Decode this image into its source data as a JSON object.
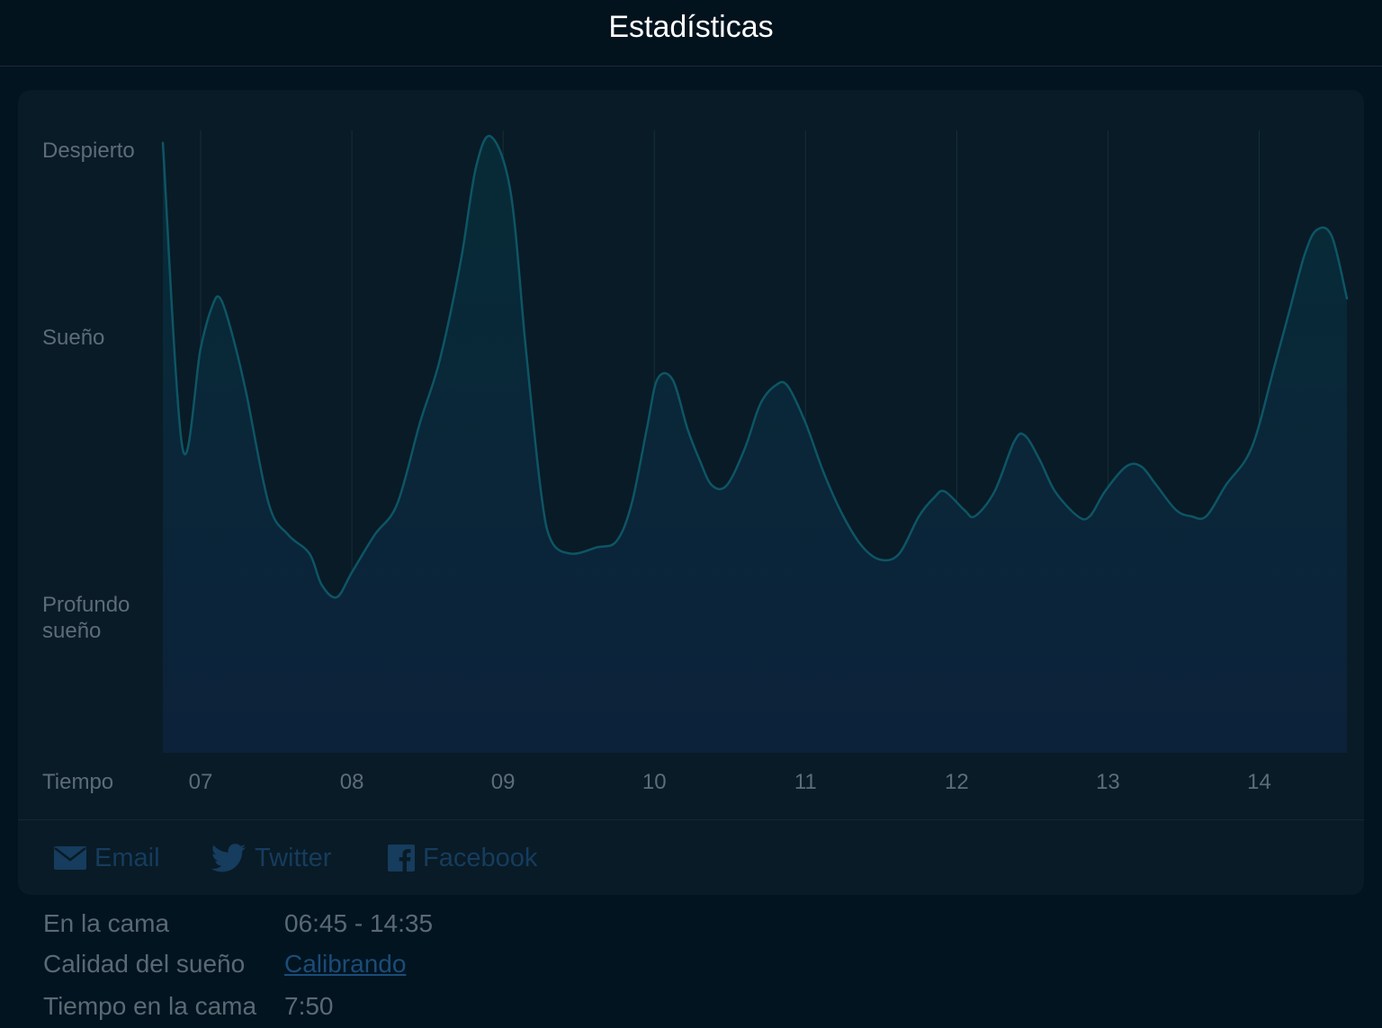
{
  "nav": {
    "title": "Estadísticas"
  },
  "colors": {
    "background": "#021420",
    "card": "#091b26",
    "line": "#0e5565",
    "muted_text": "#5d6d78",
    "share_link": "#163c5e",
    "quality_link": "#1b4c78"
  },
  "chart_data": {
    "type": "area",
    "y_categories": [
      "Despierto",
      "Sueño",
      "Profundo sueño"
    ],
    "y_axis_labels": {
      "awake": "Despierto",
      "sleep": "Sueño",
      "deep_line1": "Profundo",
      "deep_line2": "sueño"
    },
    "xlabel": "Tiempo",
    "x_ticks": [
      "07",
      "08",
      "09",
      "10",
      "11",
      "12",
      "13",
      "14"
    ],
    "x_range_hours": [
      6.75,
      14.58
    ],
    "y_range": [
      0,
      1
    ],
    "grid": "vertical lines at each hour",
    "series": [
      {
        "values_note": "sleep depth level: 1 = Despierto, 0.7 = Sueño, 0.25 = Profundo sueño",
        "points": [
          [
            6.75,
            0.98
          ],
          [
            6.88,
            0.49
          ],
          [
            7.0,
            0.65
          ],
          [
            7.08,
            0.72
          ],
          [
            7.13,
            0.73
          ],
          [
            7.2,
            0.68
          ],
          [
            7.3,
            0.58
          ],
          [
            7.45,
            0.4
          ],
          [
            7.58,
            0.35
          ],
          [
            7.72,
            0.32
          ],
          [
            7.8,
            0.27
          ],
          [
            7.9,
            0.25
          ],
          [
            8.0,
            0.29
          ],
          [
            8.15,
            0.35
          ],
          [
            8.3,
            0.4
          ],
          [
            8.45,
            0.53
          ],
          [
            8.58,
            0.63
          ],
          [
            8.72,
            0.79
          ],
          [
            8.82,
            0.94
          ],
          [
            8.92,
            0.99
          ],
          [
            9.05,
            0.9
          ],
          [
            9.15,
            0.65
          ],
          [
            9.25,
            0.42
          ],
          [
            9.32,
            0.34
          ],
          [
            9.45,
            0.32
          ],
          [
            9.62,
            0.33
          ],
          [
            9.75,
            0.34
          ],
          [
            9.85,
            0.4
          ],
          [
            9.95,
            0.52
          ],
          [
            10.02,
            0.6
          ],
          [
            10.12,
            0.6
          ],
          [
            10.22,
            0.52
          ],
          [
            10.3,
            0.47
          ],
          [
            10.38,
            0.43
          ],
          [
            10.48,
            0.43
          ],
          [
            10.6,
            0.49
          ],
          [
            10.7,
            0.56
          ],
          [
            10.8,
            0.59
          ],
          [
            10.88,
            0.59
          ],
          [
            11.0,
            0.53
          ],
          [
            11.12,
            0.45
          ],
          [
            11.25,
            0.38
          ],
          [
            11.38,
            0.33
          ],
          [
            11.5,
            0.31
          ],
          [
            11.62,
            0.32
          ],
          [
            11.75,
            0.38
          ],
          [
            11.85,
            0.41
          ],
          [
            11.92,
            0.42
          ],
          [
            12.05,
            0.39
          ],
          [
            12.12,
            0.38
          ],
          [
            12.25,
            0.42
          ],
          [
            12.38,
            0.5
          ],
          [
            12.45,
            0.51
          ],
          [
            12.55,
            0.47
          ],
          [
            12.65,
            0.42
          ],
          [
            12.8,
            0.38
          ],
          [
            12.88,
            0.38
          ],
          [
            12.98,
            0.42
          ],
          [
            13.12,
            0.46
          ],
          [
            13.22,
            0.46
          ],
          [
            13.32,
            0.43
          ],
          [
            13.45,
            0.39
          ],
          [
            13.55,
            0.38
          ],
          [
            13.65,
            0.38
          ],
          [
            13.78,
            0.43
          ],
          [
            13.95,
            0.49
          ],
          [
            14.1,
            0.62
          ],
          [
            14.2,
            0.71
          ],
          [
            14.3,
            0.8
          ],
          [
            14.38,
            0.84
          ],
          [
            14.48,
            0.83
          ],
          [
            14.58,
            0.73
          ]
        ]
      }
    ]
  },
  "share": {
    "email_label": "Email",
    "twitter_label": "Twitter",
    "facebook_label": "Facebook"
  },
  "info": {
    "in_bed_label": "En la cama",
    "in_bed_value": "06:45 - 14:35",
    "quality_label": "Calidad del sueño",
    "quality_value": "Calibrando",
    "time_in_bed_label": "Tiempo en la cama",
    "time_in_bed_value": "7:50"
  }
}
